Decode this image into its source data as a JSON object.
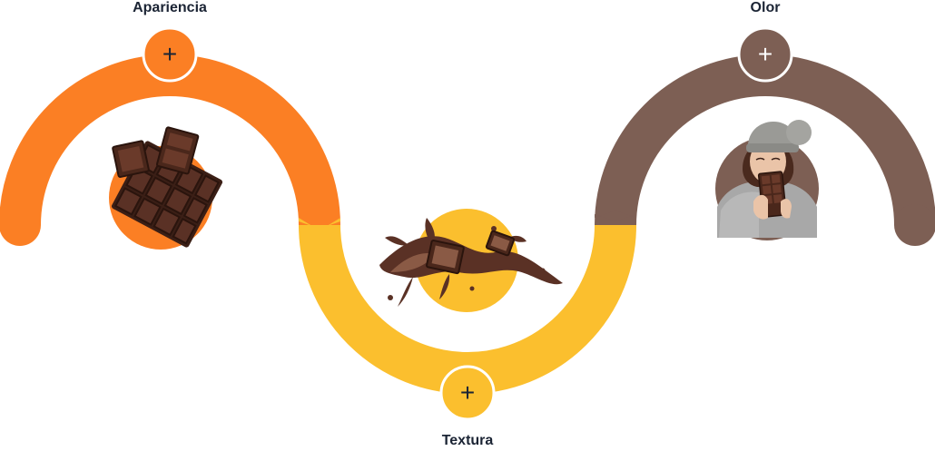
{
  "colors": {
    "orange": "#fb7f24",
    "yellow": "#fbbf2e",
    "brown": "#7d5f54",
    "chocolate_dark": "#3b1f16",
    "chocolate_mid": "#5a3125",
    "chocolate_light": "#8a5a45",
    "plus_dark": "#1b2434",
    "plus_light": "#ffffff"
  },
  "steps": [
    {
      "label": "Apariencia",
      "button_symbol": "+",
      "image_icon": "chocolate-bar-pieces-icon",
      "accent": "#fb7f24"
    },
    {
      "label": "Textura",
      "button_symbol": "+",
      "image_icon": "chocolate-splash-icon",
      "accent": "#fbbf2e"
    },
    {
      "label": "Olor",
      "button_symbol": "+",
      "image_icon": "woman-smelling-chocolate-icon",
      "accent": "#7d5f54"
    }
  ]
}
